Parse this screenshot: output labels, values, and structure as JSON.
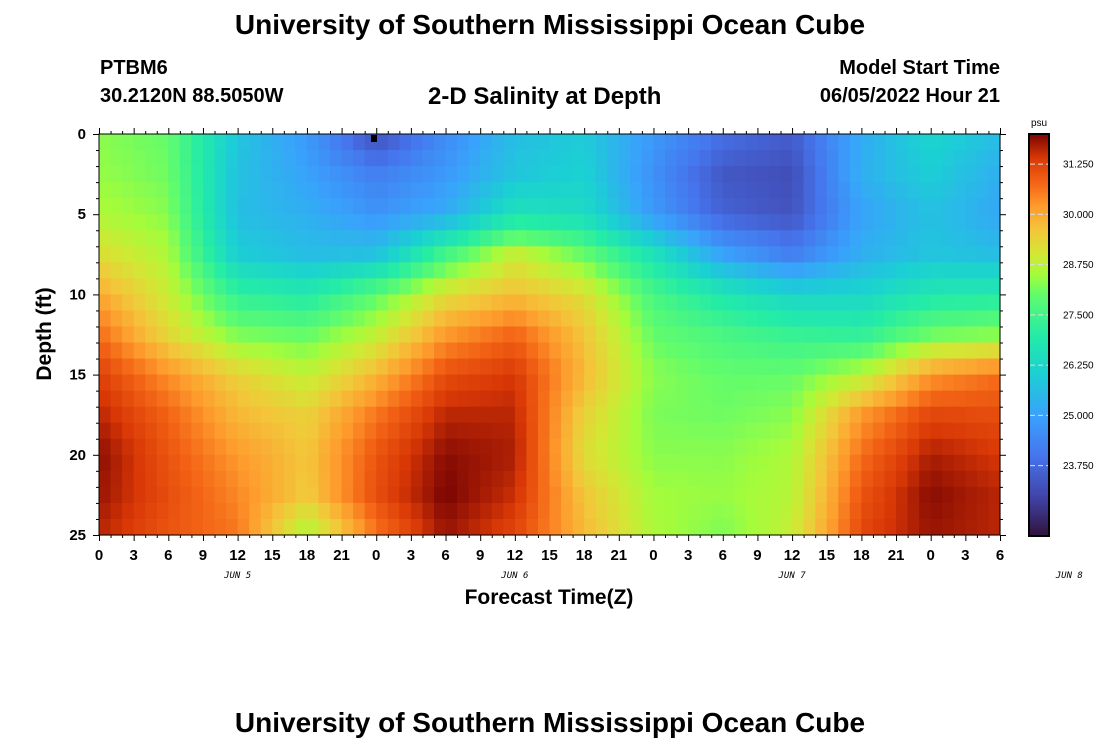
{
  "header": {
    "title": "University of Southern Mississippi Ocean Cube",
    "station": "PTBM6",
    "coords": "30.2120N  88.5050W",
    "plot_title": "2-D Salinity at Depth",
    "model_label": "Model Start Time",
    "model_time": "06/05/2022 Hour 21"
  },
  "footer": {
    "title": "University of Southern Mississippi Ocean Cube"
  },
  "chart_data": {
    "type": "heatmap",
    "title": "2-D Salinity at Depth",
    "xlabel": "Forecast Time(Z)",
    "ylabel": "Depth (ft)",
    "x_ticks": [
      "0",
      "3",
      "6",
      "9",
      "12",
      "15",
      "18",
      "21",
      "0",
      "3",
      "6",
      "9",
      "12",
      "15",
      "18",
      "21",
      "0",
      "3",
      "6",
      "9",
      "12",
      "15",
      "18",
      "21",
      "0",
      "3",
      "6"
    ],
    "day_labels": [
      {
        "label": "JUN 5",
        "hours_from_start": 12
      },
      {
        "label": "JUN 6",
        "hours_from_start": 36
      },
      {
        "label": "JUN 7",
        "hours_from_start": 60
      },
      {
        "label": "JUN 8",
        "hours_from_start": 84
      }
    ],
    "xlim_hours": [
      0,
      78
    ],
    "ylim_depth_ft": [
      0,
      25
    ],
    "y_ticks": [
      0,
      5,
      10,
      15,
      20,
      25
    ],
    "colorbar": {
      "unit": "psu",
      "range": [
        22.0,
        32.0
      ],
      "ticks": [
        "31.250",
        "30.000",
        "28.750",
        "27.500",
        "26.250",
        "25.000",
        "23.750"
      ]
    },
    "grid": false,
    "salinity_psu": {
      "time_hours": [
        0,
        6,
        12,
        18,
        24,
        30,
        36,
        42,
        48,
        54,
        60,
        66,
        72,
        78
      ],
      "depth_ft": [
        0,
        2.5,
        5,
        7.5,
        10,
        12.5,
        15,
        17.5,
        20,
        22.5,
        25
      ],
      "values": [
        [
          28.3,
          28.0,
          25.8,
          24.8,
          23.2,
          24.5,
          25.6,
          25.9,
          24.8,
          23.9,
          23.5,
          25.2,
          26.2,
          25.6
        ],
        [
          28.4,
          28.1,
          25.7,
          25.0,
          24.2,
          24.8,
          25.8,
          26.1,
          24.6,
          23.4,
          23.2,
          25.3,
          26.0,
          25.3
        ],
        [
          28.6,
          28.3,
          25.6,
          25.3,
          24.7,
          25.2,
          26.6,
          26.4,
          24.8,
          23.6,
          23.3,
          25.0,
          25.7,
          25.1
        ],
        [
          29.2,
          28.6,
          26.0,
          25.6,
          25.7,
          27.5,
          28.9,
          28.0,
          26.6,
          25.0,
          24.2,
          25.3,
          25.8,
          25.6
        ],
        [
          30.0,
          28.9,
          27.2,
          26.9,
          27.9,
          29.2,
          29.7,
          29.2,
          27.6,
          26.8,
          26.2,
          26.2,
          26.8,
          26.9
        ],
        [
          30.7,
          29.3,
          28.2,
          28.0,
          28.8,
          30.2,
          30.8,
          29.6,
          28.0,
          27.6,
          27.3,
          27.2,
          28.1,
          28.3
        ],
        [
          31.3,
          30.3,
          29.4,
          28.8,
          29.8,
          31.1,
          31.4,
          29.8,
          28.3,
          28.0,
          28.0,
          28.7,
          30.2,
          30.7
        ],
        [
          31.6,
          30.8,
          29.8,
          29.4,
          30.6,
          31.6,
          31.6,
          29.4,
          28.2,
          28.1,
          28.3,
          30.2,
          31.2,
          31.1
        ],
        [
          31.9,
          31.0,
          30.2,
          29.6,
          31.0,
          31.9,
          31.7,
          29.2,
          28.3,
          28.3,
          28.6,
          30.7,
          31.7,
          31.4
        ],
        [
          31.8,
          31.1,
          30.4,
          29.5,
          31.1,
          32.0,
          31.5,
          29.6,
          28.5,
          28.4,
          28.7,
          31.0,
          31.9,
          31.6
        ],
        [
          31.6,
          31.0,
          30.6,
          28.5,
          30.6,
          31.8,
          31.2,
          29.8,
          28.6,
          28.2,
          28.9,
          31.2,
          31.8,
          31.6
        ]
      ]
    }
  }
}
